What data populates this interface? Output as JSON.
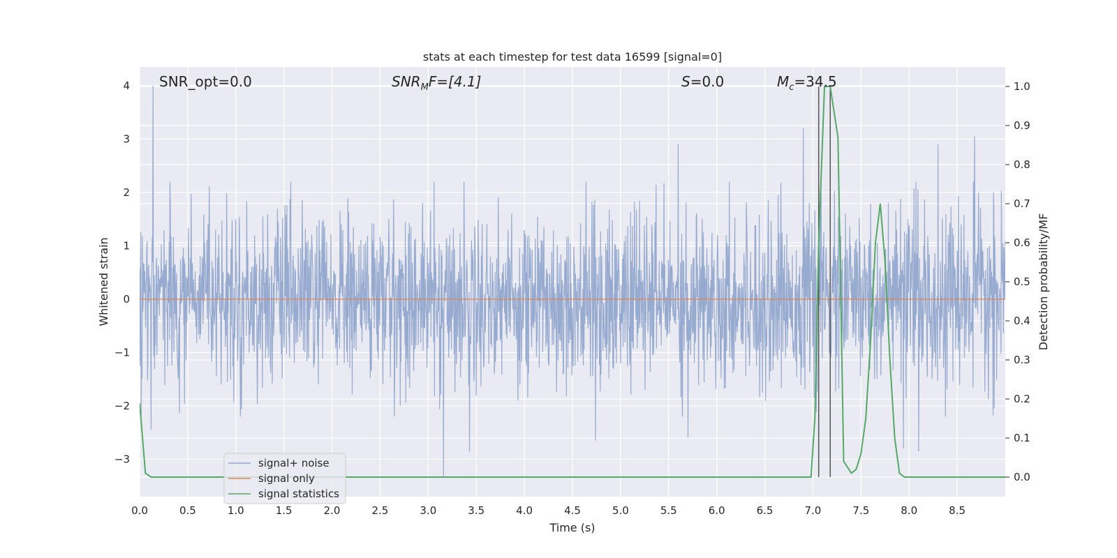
{
  "chart_data": {
    "type": "line",
    "title": "stats at each timestep for test data 16599 [signal=0]",
    "xlabel": "Time (s)",
    "ylabel": "Whitened strain",
    "ylabel_right": "Detection probability/MF",
    "xlim": [
      0.0,
      9.0
    ],
    "ylim": [
      -3.7,
      4.35
    ],
    "ylim_right": [
      -0.05,
      1.05
    ],
    "x_ticks": [
      "0.0",
      "0.5",
      "1.0",
      "1.5",
      "2.0",
      "2.5",
      "3.0",
      "3.5",
      "4.0",
      "4.5",
      "5.0",
      "5.5",
      "6.0",
      "6.5",
      "7.0",
      "7.5",
      "8.0",
      "8.5"
    ],
    "y_ticks": [
      "−3",
      "−2",
      "−1",
      "0",
      "1",
      "2",
      "3",
      "4"
    ],
    "y_right_ticks": [
      "0.0",
      "0.1",
      "0.2",
      "0.3",
      "0.4",
      "0.5",
      "0.6",
      "0.7",
      "0.8",
      "0.9",
      "1.0"
    ],
    "grid": true,
    "legend_position": "lower-left",
    "annotations": {
      "snr_opt": "SNR_opt=0.0",
      "snr_mf_sym": "SNR",
      "snr_mf_sub": "M",
      "snr_mf_rest": "F=[4.1]",
      "s_sym": "S",
      "s_rest": "=0.0",
      "mc_sym": "M",
      "mc_sub": "c",
      "mc_rest": "=34.5"
    },
    "vertical_markers_x": [
      7.06,
      7.18
    ],
    "series": [
      {
        "name": "signal+ noise",
        "color": "#92a6cc",
        "description_values": {
          "typical_envelope": [
            -1.9,
            1.9
          ],
          "spikes": [
            {
              "x": 0.14,
              "y": 4.0
            },
            {
              "x": 0.12,
              "y": -2.45
            },
            {
              "x": 3.16,
              "y": -3.35
            },
            {
              "x": 3.43,
              "y": -2.85
            },
            {
              "x": 4.74,
              "y": -2.65
            },
            {
              "x": 5.6,
              "y": 2.9
            },
            {
              "x": 5.7,
              "y": -2.6
            },
            {
              "x": 6.9,
              "y": 3.2
            },
            {
              "x": 7.94,
              "y": -2.8
            },
            {
              "x": 8.1,
              "y": -2.85
            },
            {
              "x": 8.3,
              "y": 2.9
            },
            {
              "x": 8.68,
              "y": 3.05
            }
          ]
        }
      },
      {
        "name": "signal only",
        "color": "#dd8452",
        "x": [
          0.0,
          9.0
        ],
        "y": [
          0.0,
          0.0
        ]
      },
      {
        "name": "signal statistics",
        "color": "#55a868",
        "axis": "right",
        "x": [
          0.0,
          0.06,
          0.12,
          0.2,
          6.98,
          7.02,
          7.06,
          7.12,
          7.18,
          7.26,
          7.32,
          7.4,
          7.45,
          7.5,
          7.55,
          7.6,
          7.65,
          7.7,
          7.75,
          7.8,
          7.85,
          7.9,
          7.95,
          8.0,
          9.0
        ],
        "y": [
          0.19,
          0.01,
          0.0,
          0.0,
          0.0,
          0.15,
          0.6,
          1.0,
          1.0,
          0.87,
          0.04,
          0.01,
          0.02,
          0.06,
          0.15,
          0.35,
          0.6,
          0.7,
          0.55,
          0.3,
          0.1,
          0.01,
          0.0,
          0.0,
          0.0
        ]
      }
    ]
  }
}
